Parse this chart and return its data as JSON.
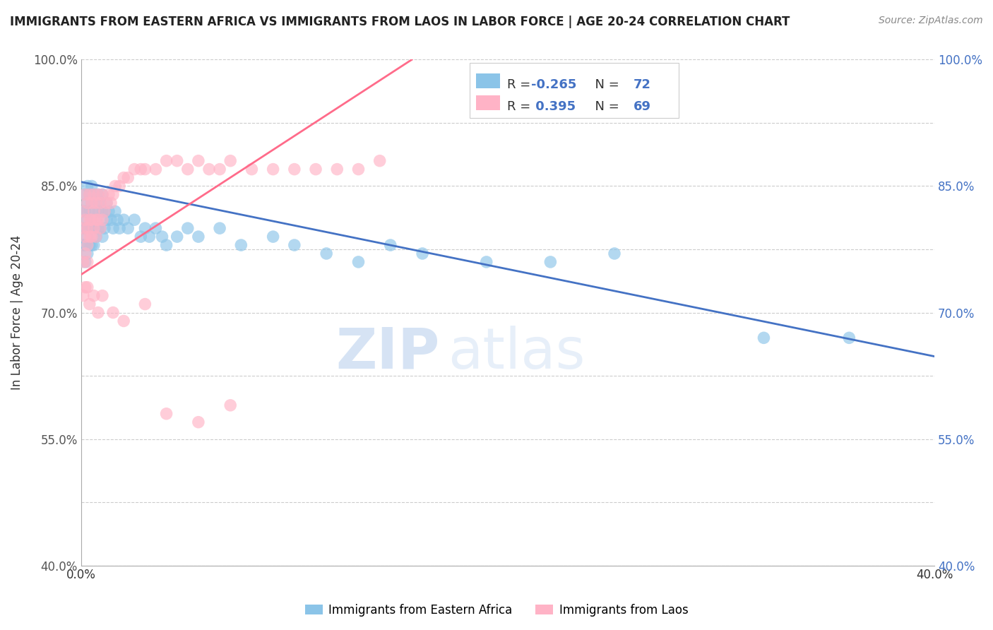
{
  "title": "IMMIGRANTS FROM EASTERN AFRICA VS IMMIGRANTS FROM LAOS IN LABOR FORCE | AGE 20-24 CORRELATION CHART",
  "source": "Source: ZipAtlas.com",
  "ylabel": "In Labor Force | Age 20-24",
  "xlim": [
    0.0,
    0.4
  ],
  "ylim": [
    0.4,
    1.0
  ],
  "xticks": [
    0.0,
    0.05,
    0.1,
    0.15,
    0.2,
    0.25,
    0.3,
    0.35,
    0.4
  ],
  "yticks": [
    0.4,
    0.475,
    0.55,
    0.625,
    0.7,
    0.775,
    0.85,
    0.925,
    1.0
  ],
  "ytick_labels": [
    "40.0%",
    "",
    "55.0%",
    "",
    "70.0%",
    "",
    "85.0%",
    "",
    "100.0%"
  ],
  "blue_R": -0.265,
  "blue_N": 72,
  "pink_R": 0.395,
  "pink_N": 69,
  "blue_color": "#8BC4E8",
  "pink_color": "#FFB3C6",
  "blue_line_color": "#4472C4",
  "pink_line_color": "#FF6B8A",
  "watermark_zip": "ZIP",
  "watermark_atlas": "atlas",
  "legend_label_blue": "Immigrants from Eastern Africa",
  "legend_label_pink": "Immigrants from Laos",
  "blue_line_x0": 0.0,
  "blue_line_y0": 0.855,
  "blue_line_x1": 0.4,
  "blue_line_y1": 0.648,
  "pink_line_x0": 0.0,
  "pink_line_y0": 0.745,
  "pink_line_x1": 0.155,
  "pink_line_y1": 1.0,
  "blue_scatter_x": [
    0.001,
    0.001,
    0.001,
    0.002,
    0.002,
    0.002,
    0.002,
    0.002,
    0.003,
    0.003,
    0.003,
    0.003,
    0.003,
    0.004,
    0.004,
    0.004,
    0.004,
    0.005,
    0.005,
    0.005,
    0.005,
    0.005,
    0.006,
    0.006,
    0.006,
    0.006,
    0.007,
    0.007,
    0.007,
    0.008,
    0.008,
    0.008,
    0.009,
    0.009,
    0.01,
    0.01,
    0.01,
    0.011,
    0.011,
    0.012,
    0.012,
    0.013,
    0.014,
    0.015,
    0.016,
    0.017,
    0.018,
    0.02,
    0.022,
    0.025,
    0.028,
    0.03,
    0.032,
    0.035,
    0.038,
    0.04,
    0.045,
    0.05,
    0.055,
    0.065,
    0.075,
    0.09,
    0.1,
    0.115,
    0.13,
    0.145,
    0.16,
    0.19,
    0.22,
    0.25,
    0.32,
    0.36
  ],
  "blue_scatter_y": [
    0.82,
    0.8,
    0.78,
    0.84,
    0.82,
    0.8,
    0.78,
    0.76,
    0.85,
    0.83,
    0.81,
    0.79,
    0.77,
    0.84,
    0.82,
    0.8,
    0.78,
    0.85,
    0.83,
    0.81,
    0.8,
    0.78,
    0.84,
    0.82,
    0.8,
    0.78,
    0.83,
    0.81,
    0.79,
    0.84,
    0.82,
    0.8,
    0.83,
    0.8,
    0.84,
    0.82,
    0.79,
    0.82,
    0.8,
    0.83,
    0.81,
    0.82,
    0.81,
    0.8,
    0.82,
    0.81,
    0.8,
    0.81,
    0.8,
    0.81,
    0.79,
    0.8,
    0.79,
    0.8,
    0.79,
    0.78,
    0.79,
    0.8,
    0.79,
    0.8,
    0.78,
    0.79,
    0.78,
    0.77,
    0.76,
    0.78,
    0.77,
    0.76,
    0.76,
    0.77,
    0.67,
    0.67
  ],
  "pink_scatter_x": [
    0.001,
    0.001,
    0.001,
    0.002,
    0.002,
    0.002,
    0.002,
    0.003,
    0.003,
    0.003,
    0.003,
    0.004,
    0.004,
    0.004,
    0.005,
    0.005,
    0.005,
    0.006,
    0.006,
    0.006,
    0.007,
    0.007,
    0.007,
    0.008,
    0.008,
    0.009,
    0.009,
    0.01,
    0.01,
    0.011,
    0.012,
    0.013,
    0.014,
    0.015,
    0.016,
    0.018,
    0.02,
    0.022,
    0.025,
    0.028,
    0.03,
    0.035,
    0.04,
    0.045,
    0.05,
    0.055,
    0.06,
    0.065,
    0.07,
    0.08,
    0.09,
    0.1,
    0.11,
    0.12,
    0.13,
    0.14,
    0.001,
    0.002,
    0.003,
    0.004,
    0.006,
    0.008,
    0.01,
    0.015,
    0.02,
    0.03,
    0.04,
    0.055,
    0.07
  ],
  "pink_scatter_y": [
    0.82,
    0.8,
    0.76,
    0.84,
    0.81,
    0.79,
    0.77,
    0.83,
    0.8,
    0.78,
    0.76,
    0.84,
    0.81,
    0.79,
    0.83,
    0.81,
    0.79,
    0.84,
    0.82,
    0.8,
    0.83,
    0.81,
    0.79,
    0.84,
    0.81,
    0.83,
    0.8,
    0.84,
    0.81,
    0.82,
    0.83,
    0.84,
    0.83,
    0.84,
    0.85,
    0.85,
    0.86,
    0.86,
    0.87,
    0.87,
    0.87,
    0.87,
    0.88,
    0.88,
    0.87,
    0.88,
    0.87,
    0.87,
    0.88,
    0.87,
    0.87,
    0.87,
    0.87,
    0.87,
    0.87,
    0.88,
    0.72,
    0.73,
    0.73,
    0.71,
    0.72,
    0.7,
    0.72,
    0.7,
    0.69,
    0.71,
    0.58,
    0.57,
    0.59
  ]
}
